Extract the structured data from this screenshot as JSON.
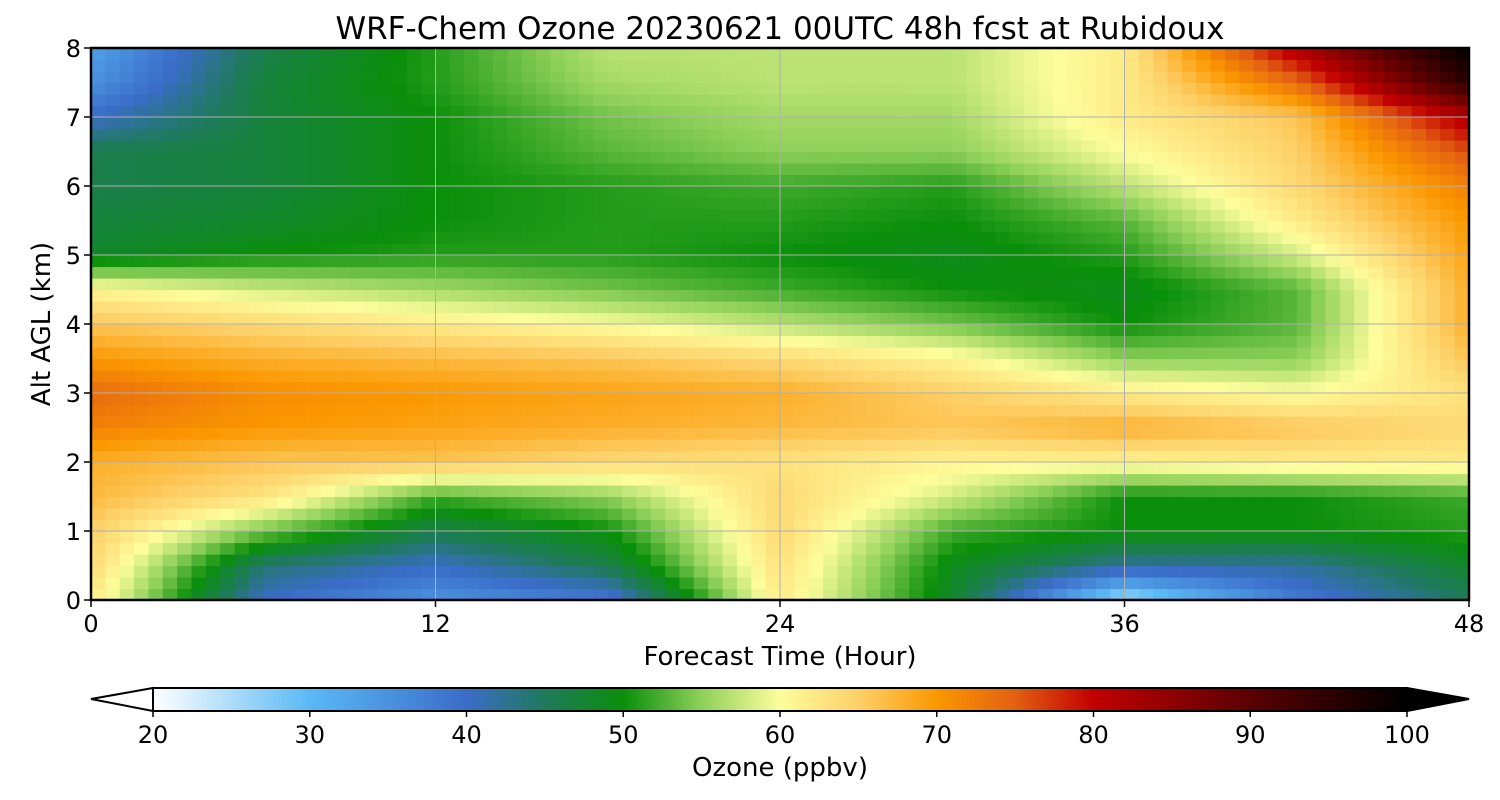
{
  "chart_data": {
    "type": "heatmap",
    "title": "WRF-Chem Ozone  20230621 00UTC 48h fcst at Rubidoux",
    "xlabel": "Forecast Time (Hour)",
    "ylabel": "Alt AGL (km)",
    "xlim": [
      0,
      48
    ],
    "ylim": [
      0,
      8
    ],
    "x_ticks": [
      "0",
      "12",
      "24",
      "36",
      "48"
    ],
    "y_ticks": [
      "0",
      "1",
      "2",
      "3",
      "4",
      "5",
      "6",
      "7",
      "8"
    ],
    "grid": true,
    "colorbar": {
      "label": "Ozone  (ppbv)",
      "range": [
        20,
        100
      ],
      "ticks": [
        "20",
        "30",
        "40",
        "50",
        "60",
        "70",
        "80",
        "90",
        "100"
      ],
      "extend": "both",
      "stops": [
        {
          "value": 20,
          "color": "#ffffff"
        },
        {
          "value": 30,
          "color": "#5ab9f5"
        },
        {
          "value": 40,
          "color": "#3a6cc8"
        },
        {
          "value": 45,
          "color": "#1f7a5c"
        },
        {
          "value": 50,
          "color": "#0a8f0a"
        },
        {
          "value": 55,
          "color": "#8ed05a"
        },
        {
          "value": 60,
          "color": "#fdfd9c"
        },
        {
          "value": 65,
          "color": "#fdd068"
        },
        {
          "value": 70,
          "color": "#fb9800"
        },
        {
          "value": 75,
          "color": "#e36012"
        },
        {
          "value": 80,
          "color": "#c20000"
        },
        {
          "value": 90,
          "color": "#5a0000"
        },
        {
          "value": 100,
          "color": "#000000"
        }
      ]
    },
    "x": [
      0,
      6,
      12,
      18,
      24,
      30,
      36,
      42,
      48
    ],
    "y": [
      0,
      0.5,
      1,
      1.5,
      2,
      2.5,
      3,
      3.5,
      4,
      4.5,
      5,
      5.5,
      6,
      6.5,
      7,
      7.5,
      8
    ],
    "z": [
      [
        62,
        40,
        35,
        38,
        62,
        48,
        25,
        38,
        45
      ],
      [
        64,
        44,
        40,
        46,
        63,
        49,
        42,
        42,
        48
      ],
      [
        65,
        54,
        46,
        50,
        64,
        52,
        50,
        50,
        51
      ],
      [
        67,
        63,
        52,
        55,
        64,
        58,
        50,
        50,
        52
      ],
      [
        68,
        66,
        66,
        64,
        63,
        61,
        61,
        62,
        62
      ],
      [
        72,
        70,
        69,
        68,
        67,
        66,
        68,
        66,
        64
      ],
      [
        74,
        71,
        70,
        69,
        68,
        65,
        62,
        60,
        63
      ],
      [
        70,
        68,
        67,
        66,
        64,
        61,
        55,
        55,
        66
      ],
      [
        66,
        64,
        62,
        60,
        57,
        54,
        50,
        53,
        68
      ],
      [
        61,
        58,
        56,
        54,
        52,
        50,
        49,
        53,
        68
      ],
      [
        48,
        50,
        51,
        51,
        50,
        49,
        51,
        58,
        69
      ],
      [
        47,
        48,
        50,
        51,
        51,
        50,
        53,
        62,
        70
      ],
      [
        46,
        47,
        50,
        51,
        52,
        51,
        57,
        64,
        72
      ],
      [
        46,
        47,
        50,
        53,
        55,
        55,
        60,
        65,
        76
      ],
      [
        40,
        47,
        50,
        54,
        56,
        56,
        62,
        66,
        82
      ],
      [
        35,
        47,
        51,
        56,
        57,
        57,
        62,
        74,
        95
      ],
      [
        33,
        46,
        51,
        57,
        57,
        57,
        62,
        82,
        100
      ]
    ]
  }
}
